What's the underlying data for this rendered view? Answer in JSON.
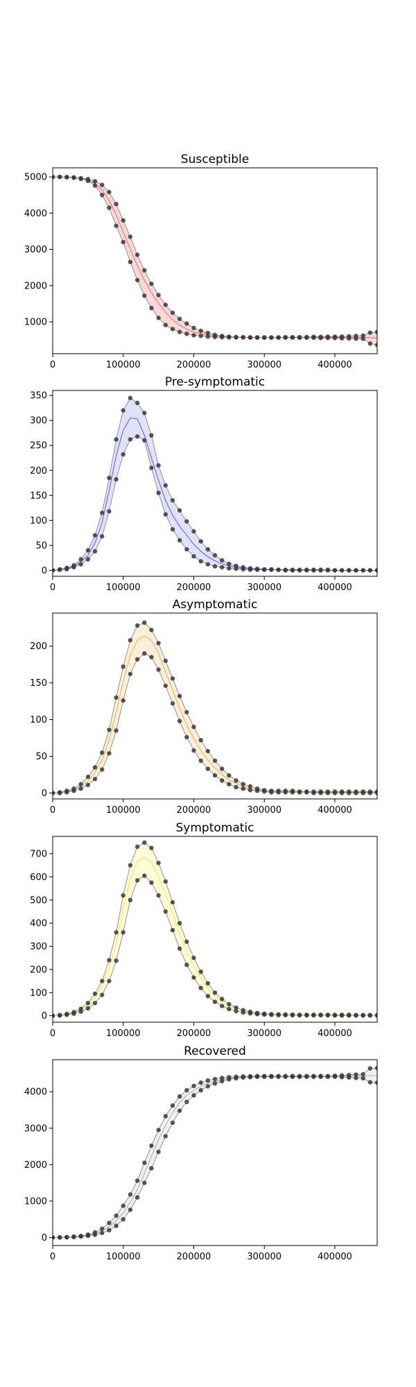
{
  "chart_data": [
    {
      "type": "line",
      "title": "Susceptible",
      "xlim": [
        0,
        460000
      ],
      "ylim": [
        120,
        5250
      ],
      "xticks": [
        0,
        100000,
        200000,
        300000,
        400000
      ],
      "yticks": [
        1000,
        2000,
        3000,
        4000,
        5000
      ],
      "x": [
        0,
        10000,
        20000,
        30000,
        40000,
        50000,
        60000,
        70000,
        80000,
        90000,
        100000,
        110000,
        120000,
        130000,
        140000,
        150000,
        160000,
        170000,
        180000,
        190000,
        200000,
        210000,
        220000,
        230000,
        240000,
        250000,
        260000,
        270000,
        280000,
        290000,
        300000,
        310000,
        320000,
        330000,
        340000,
        350000,
        360000,
        370000,
        380000,
        390000,
        400000,
        410000,
        420000,
        430000,
        440000,
        450000,
        460000
      ],
      "colors": {
        "mean": "#e06060",
        "band": "#f4b8b8"
      },
      "series": [
        {
          "role": "upper",
          "values": [
            5000,
            5000,
            4995,
            4985,
            4965,
            4940,
            4880,
            4780,
            4580,
            4250,
            3800,
            3350,
            2850,
            2420,
            2050,
            1740,
            1470,
            1250,
            1080,
            950,
            830,
            750,
            690,
            640,
            610,
            590,
            580,
            575,
            570,
            570,
            570,
            570,
            570,
            575,
            575,
            575,
            580,
            585,
            585,
            590,
            590,
            595,
            600,
            610,
            620,
            700,
            720
          ]
        },
        {
          "role": "mean",
          "values": [
            5000,
            5000,
            4995,
            4980,
            4955,
            4910,
            4820,
            4640,
            4350,
            3950,
            3480,
            3000,
            2550,
            2150,
            1800,
            1510,
            1260,
            1060,
            910,
            800,
            720,
            670,
            630,
            610,
            590,
            580,
            575,
            570,
            570,
            570,
            570,
            570,
            570,
            570,
            570,
            570,
            570,
            570,
            570,
            570,
            570,
            570,
            570,
            570,
            570,
            560,
            550
          ]
        },
        {
          "role": "lower",
          "values": [
            5000,
            5000,
            4990,
            4975,
            4945,
            4890,
            4760,
            4500,
            4150,
            3650,
            3200,
            2650,
            2150,
            1720,
            1380,
            1110,
            910,
            800,
            720,
            670,
            630,
            610,
            590,
            580,
            575,
            570,
            570,
            570,
            565,
            565,
            565,
            565,
            565,
            565,
            565,
            560,
            560,
            560,
            555,
            555,
            550,
            545,
            540,
            535,
            530,
            400,
            360
          ]
        }
      ]
    },
    {
      "type": "line",
      "title": "Pre-symptomatic",
      "xlim": [
        0,
        460000
      ],
      "ylim": [
        -12,
        360
      ],
      "xticks": [
        0,
        100000,
        200000,
        300000,
        400000
      ],
      "yticks": [
        0,
        50,
        100,
        150,
        200,
        250,
        300,
        350
      ],
      "x": [
        0,
        10000,
        20000,
        30000,
        40000,
        50000,
        60000,
        70000,
        80000,
        90000,
        100000,
        110000,
        120000,
        130000,
        140000,
        150000,
        160000,
        170000,
        180000,
        190000,
        200000,
        210000,
        220000,
        230000,
        240000,
        250000,
        260000,
        270000,
        280000,
        290000,
        300000,
        310000,
        320000,
        330000,
        340000,
        350000,
        360000,
        370000,
        380000,
        390000,
        400000,
        410000,
        420000,
        430000,
        440000,
        450000,
        460000
      ],
      "colors": {
        "mean": "#4a4aff",
        "band": "#c8c8f6"
      },
      "series": [
        {
          "role": "upper",
          "values": [
            0,
            2,
            5,
            10,
            22,
            40,
            70,
            115,
            185,
            262,
            320,
            345,
            335,
            315,
            270,
            210,
            170,
            140,
            120,
            98,
            78,
            58,
            42,
            30,
            20,
            13,
            9,
            6,
            4,
            3,
            2,
            2,
            1,
            1,
            1,
            1,
            1,
            1,
            1,
            1,
            0,
            0,
            0,
            0,
            0,
            0,
            0
          ]
        },
        {
          "role": "mean",
          "values": [
            0,
            1,
            3,
            8,
            17,
            30,
            55,
            95,
            160,
            230,
            280,
            305,
            303,
            270,
            225,
            180,
            140,
            110,
            88,
            70,
            52,
            38,
            27,
            19,
            13,
            9,
            6,
            4,
            3,
            2,
            2,
            1,
            1,
            1,
            1,
            1,
            1,
            1,
            1,
            0,
            0,
            0,
            0,
            0,
            0,
            0,
            0
          ]
        },
        {
          "role": "lower",
          "values": [
            0,
            1,
            2,
            6,
            12,
            22,
            38,
            68,
            118,
            182,
            232,
            262,
            268,
            260,
            205,
            155,
            112,
            82,
            60,
            42,
            28,
            18,
            12,
            8,
            6,
            4,
            3,
            2,
            1,
            1,
            1,
            1,
            1,
            0,
            0,
            0,
            0,
            0,
            0,
            0,
            0,
            0,
            0,
            0,
            0,
            0,
            0
          ]
        }
      ]
    },
    {
      "type": "line",
      "title": "Asymptomatic",
      "xlim": [
        0,
        460000
      ],
      "ylim": [
        -8,
        245
      ],
      "xticks": [
        0,
        100000,
        200000,
        300000,
        400000
      ],
      "yticks": [
        0,
        50,
        100,
        150,
        200
      ],
      "x": [
        0,
        10000,
        20000,
        30000,
        40000,
        50000,
        60000,
        70000,
        80000,
        90000,
        100000,
        110000,
        120000,
        130000,
        140000,
        150000,
        160000,
        170000,
        180000,
        190000,
        200000,
        210000,
        220000,
        230000,
        240000,
        250000,
        260000,
        270000,
        280000,
        290000,
        300000,
        310000,
        320000,
        330000,
        340000,
        350000,
        360000,
        370000,
        380000,
        390000,
        400000,
        410000,
        420000,
        430000,
        440000,
        450000,
        460000
      ],
      "colors": {
        "mean": "#f0a040",
        "band": "#fbe3bc"
      },
      "series": [
        {
          "role": "upper",
          "values": [
            0,
            1,
            3,
            6,
            12,
            22,
            35,
            55,
            86,
            130,
            172,
            208,
            228,
            232,
            222,
            204,
            180,
            156,
            132,
            110,
            90,
            72,
            57,
            44,
            33,
            24,
            17,
            12,
            9,
            6,
            4,
            3,
            3,
            3,
            3,
            2,
            2,
            2,
            2,
            2,
            2,
            2,
            2,
            2,
            2,
            2,
            2
          ]
        },
        {
          "role": "mean",
          "values": [
            0,
            1,
            2,
            5,
            9,
            16,
            28,
            45,
            72,
            110,
            152,
            188,
            208,
            214,
            208,
            190,
            165,
            140,
            115,
            93,
            74,
            58,
            45,
            34,
            25,
            18,
            13,
            9,
            6,
            4,
            3,
            2,
            2,
            2,
            2,
            1,
            1,
            1,
            1,
            1,
            1,
            1,
            1,
            1,
            1,
            1,
            1
          ]
        },
        {
          "role": "lower",
          "values": [
            0,
            0,
            1,
            3,
            6,
            11,
            19,
            32,
            54,
            85,
            126,
            162,
            182,
            190,
            185,
            168,
            146,
            122,
            98,
            76,
            58,
            44,
            33,
            24,
            17,
            12,
            8,
            6,
            4,
            3,
            2,
            1,
            1,
            1,
            1,
            1,
            1,
            0,
            0,
            0,
            0,
            0,
            0,
            0,
            0,
            0,
            0
          ]
        }
      ]
    },
    {
      "type": "line",
      "title": "Symptomatic",
      "xlim": [
        0,
        460000
      ],
      "ylim": [
        -28,
        775
      ],
      "xticks": [
        0,
        100000,
        200000,
        300000,
        400000
      ],
      "yticks": [
        0,
        100,
        200,
        300,
        400,
        500,
        600,
        700
      ],
      "x": [
        0,
        10000,
        20000,
        30000,
        40000,
        50000,
        60000,
        70000,
        80000,
        90000,
        100000,
        110000,
        120000,
        130000,
        140000,
        150000,
        160000,
        170000,
        180000,
        190000,
        200000,
        210000,
        220000,
        230000,
        240000,
        250000,
        260000,
        270000,
        280000,
        290000,
        300000,
        310000,
        320000,
        330000,
        340000,
        350000,
        360000,
        370000,
        380000,
        390000,
        400000,
        410000,
        420000,
        430000,
        440000,
        450000,
        460000
      ],
      "colors": {
        "mean": "#f0e050",
        "band": "#fffab8"
      },
      "series": [
        {
          "role": "upper",
          "values": [
            0,
            3,
            8,
            16,
            30,
            55,
            95,
            150,
            240,
            360,
            520,
            650,
            730,
            748,
            725,
            660,
            580,
            490,
            400,
            320,
            250,
            190,
            140,
            100,
            72,
            50,
            35,
            24,
            17,
            12,
            9,
            7,
            6,
            5,
            5,
            4,
            4,
            4,
            4,
            4,
            4,
            4,
            4,
            3,
            3,
            3,
            3
          ]
        },
        {
          "role": "mean",
          "values": [
            0,
            2,
            6,
            13,
            25,
            45,
            78,
            130,
            205,
            315,
            465,
            590,
            665,
            685,
            660,
            600,
            525,
            440,
            355,
            280,
            215,
            160,
            118,
            85,
            60,
            42,
            29,
            20,
            14,
            10,
            7,
            6,
            5,
            4,
            4,
            3,
            3,
            3,
            3,
            3,
            3,
            3,
            3,
            2,
            2,
            2,
            2
          ]
        },
        {
          "role": "lower",
          "values": [
            0,
            1,
            4,
            9,
            18,
            32,
            55,
            90,
            150,
            238,
            360,
            500,
            585,
            605,
            575,
            520,
            450,
            370,
            290,
            220,
            165,
            120,
            85,
            60,
            42,
            29,
            20,
            14,
            10,
            7,
            5,
            4,
            3,
            3,
            2,
            2,
            2,
            2,
            2,
            2,
            1,
            1,
            1,
            1,
            1,
            1,
            1
          ]
        }
      ]
    },
    {
      "type": "line",
      "title": "Recovered",
      "xlim": [
        0,
        460000
      ],
      "ylim": [
        -220,
        4880
      ],
      "xticks": [
        0,
        100000,
        200000,
        300000,
        400000
      ],
      "yticks": [
        0,
        1000,
        2000,
        3000,
        4000
      ],
      "x": [
        0,
        10000,
        20000,
        30000,
        40000,
        50000,
        60000,
        70000,
        80000,
        90000,
        100000,
        110000,
        120000,
        130000,
        140000,
        150000,
        160000,
        170000,
        180000,
        190000,
        200000,
        210000,
        220000,
        230000,
        240000,
        250000,
        260000,
        270000,
        280000,
        290000,
        300000,
        310000,
        320000,
        330000,
        340000,
        350000,
        360000,
        370000,
        380000,
        390000,
        400000,
        410000,
        420000,
        430000,
        440000,
        450000,
        460000
      ],
      "colors": {
        "mean": "#a0a0a0",
        "band": "#e4e4e4"
      },
      "series": [
        {
          "role": "upper",
          "values": [
            0,
            5,
            12,
            25,
            45,
            80,
            140,
            240,
            400,
            600,
            870,
            1180,
            1560,
            2050,
            2520,
            2950,
            3330,
            3620,
            3870,
            4040,
            4160,
            4250,
            4310,
            4350,
            4380,
            4400,
            4410,
            4420,
            4425,
            4430,
            4430,
            4430,
            4430,
            4430,
            4430,
            4430,
            4430,
            4430,
            4430,
            4430,
            4440,
            4450,
            4460,
            4470,
            4480,
            4640,
            4650
          ]
        },
        {
          "role": "mean",
          "values": [
            0,
            3,
            8,
            18,
            35,
            60,
            105,
            180,
            300,
            460,
            680,
            960,
            1320,
            1760,
            2230,
            2680,
            3080,
            3420,
            3700,
            3900,
            4040,
            4150,
            4230,
            4290,
            4330,
            4360,
            4380,
            4400,
            4410,
            4420,
            4420,
            4425,
            4425,
            4425,
            4425,
            4425,
            4425,
            4425,
            4425,
            4425,
            4425,
            4430,
            4430,
            4430,
            4430,
            4440,
            4445
          ]
        },
        {
          "role": "lower",
          "values": [
            0,
            2,
            5,
            12,
            25,
            45,
            75,
            125,
            200,
            320,
            500,
            760,
            1100,
            1500,
            1900,
            2350,
            2780,
            3150,
            3480,
            3720,
            3900,
            4040,
            4150,
            4230,
            4290,
            4340,
            4370,
            4390,
            4400,
            4410,
            4410,
            4410,
            4410,
            4410,
            4410,
            4410,
            4410,
            4410,
            4410,
            4410,
            4410,
            4400,
            4390,
            4380,
            4370,
            4260,
            4250
          ]
        }
      ]
    }
  ]
}
